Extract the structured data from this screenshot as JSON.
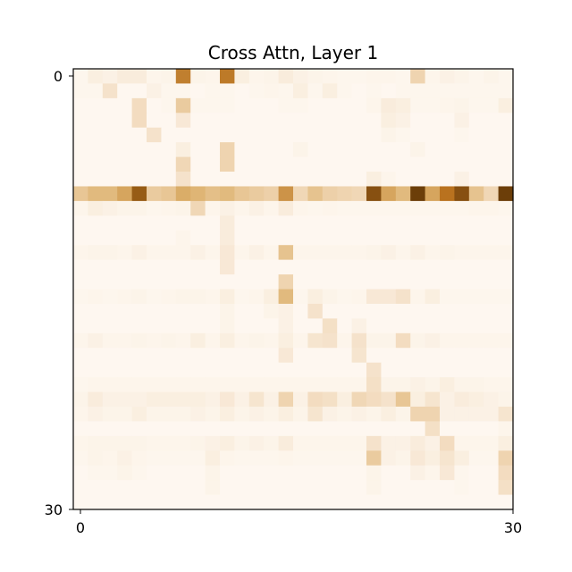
{
  "chart_data": {
    "type": "heatmap",
    "title": "Cross Attn, Layer 1",
    "xlabel": "",
    "ylabel": "",
    "rows": 30,
    "cols": 30,
    "xlim": [
      0,
      30
    ],
    "ylim": [
      0,
      30
    ],
    "x_ticks": [
      "0",
      "30"
    ],
    "y_ticks": [
      "0",
      "30"
    ],
    "colormap": [
      "#fffbf6",
      "#f3dcc0",
      "#ddb26e",
      "#b9721f",
      "#653a07"
    ],
    "grid": false,
    "values": [
      [
        0.04,
        0.1,
        0.08,
        0.12,
        0.12,
        0.05,
        0.06,
        0.7,
        0.06,
        0.05,
        0.72,
        0.1,
        0.05,
        0.06,
        0.12,
        0.08,
        0.06,
        0.05,
        0.04,
        0.04,
        0.05,
        0.05,
        0.04,
        0.3,
        0.05,
        0.08,
        0.06,
        0.04,
        0.06,
        0.04
      ],
      [
        0.04,
        0.04,
        0.2,
        0.03,
        0.03,
        0.08,
        0.04,
        0.04,
        0.03,
        0.04,
        0.04,
        0.03,
        0.04,
        0.05,
        0.04,
        0.1,
        0.04,
        0.1,
        0.04,
        0.03,
        0.04,
        0.03,
        0.04,
        0.04,
        0.04,
        0.04,
        0.04,
        0.04,
        0.04,
        0.04
      ],
      [
        0.03,
        0.03,
        0.03,
        0.03,
        0.25,
        0.03,
        0.04,
        0.35,
        0.04,
        0.04,
        0.04,
        0.03,
        0.03,
        0.03,
        0.04,
        0.04,
        0.03,
        0.03,
        0.03,
        0.03,
        0.05,
        0.12,
        0.1,
        0.04,
        0.04,
        0.05,
        0.06,
        0.04,
        0.04,
        0.1
      ],
      [
        0.03,
        0.03,
        0.03,
        0.03,
        0.25,
        0.03,
        0.03,
        0.15,
        0.03,
        0.03,
        0.03,
        0.03,
        0.03,
        0.03,
        0.03,
        0.03,
        0.03,
        0.03,
        0.03,
        0.03,
        0.03,
        0.1,
        0.08,
        0.03,
        0.03,
        0.03,
        0.08,
        0.03,
        0.03,
        0.03
      ],
      [
        0.03,
        0.03,
        0.03,
        0.03,
        0.03,
        0.2,
        0.03,
        0.03,
        0.03,
        0.03,
        0.03,
        0.03,
        0.03,
        0.03,
        0.03,
        0.03,
        0.03,
        0.03,
        0.03,
        0.03,
        0.03,
        0.06,
        0.04,
        0.03,
        0.03,
        0.03,
        0.04,
        0.03,
        0.03,
        0.03
      ],
      [
        0.03,
        0.03,
        0.03,
        0.03,
        0.03,
        0.03,
        0.03,
        0.1,
        0.03,
        0.03,
        0.3,
        0.03,
        0.03,
        0.03,
        0.03,
        0.06,
        0.03,
        0.03,
        0.03,
        0.03,
        0.03,
        0.03,
        0.03,
        0.06,
        0.03,
        0.03,
        0.03,
        0.03,
        0.03,
        0.03
      ],
      [
        0.03,
        0.03,
        0.03,
        0.03,
        0.03,
        0.03,
        0.03,
        0.28,
        0.03,
        0.03,
        0.3,
        0.03,
        0.03,
        0.03,
        0.03,
        0.03,
        0.03,
        0.03,
        0.03,
        0.03,
        0.03,
        0.03,
        0.03,
        0.03,
        0.03,
        0.03,
        0.03,
        0.03,
        0.03,
        0.03
      ],
      [
        0.03,
        0.03,
        0.03,
        0.03,
        0.03,
        0.03,
        0.03,
        0.2,
        0.03,
        0.03,
        0.03,
        0.03,
        0.03,
        0.03,
        0.03,
        0.03,
        0.03,
        0.03,
        0.03,
        0.03,
        0.1,
        0.05,
        0.03,
        0.03,
        0.03,
        0.03,
        0.08,
        0.03,
        0.03,
        0.03
      ],
      [
        0.38,
        0.45,
        0.45,
        0.55,
        0.85,
        0.35,
        0.38,
        0.52,
        0.48,
        0.42,
        0.45,
        0.38,
        0.35,
        0.32,
        0.62,
        0.28,
        0.4,
        0.32,
        0.3,
        0.28,
        0.9,
        0.55,
        0.45,
        0.98,
        0.55,
        0.75,
        0.9,
        0.4,
        0.28,
        0.98
      ],
      [
        0.05,
        0.1,
        0.08,
        0.06,
        0.06,
        0.04,
        0.05,
        0.06,
        0.28,
        0.05,
        0.08,
        0.05,
        0.08,
        0.05,
        0.12,
        0.05,
        0.04,
        0.05,
        0.04,
        0.04,
        0.04,
        0.04,
        0.04,
        0.04,
        0.04,
        0.04,
        0.04,
        0.05,
        0.05,
        0.04
      ],
      [
        0.03,
        0.03,
        0.03,
        0.03,
        0.03,
        0.03,
        0.03,
        0.03,
        0.03,
        0.03,
        0.12,
        0.03,
        0.03,
        0.03,
        0.03,
        0.03,
        0.03,
        0.03,
        0.03,
        0.03,
        0.03,
        0.03,
        0.03,
        0.03,
        0.03,
        0.03,
        0.03,
        0.03,
        0.03,
        0.03
      ],
      [
        0.03,
        0.03,
        0.03,
        0.03,
        0.03,
        0.03,
        0.03,
        0.05,
        0.03,
        0.03,
        0.12,
        0.03,
        0.03,
        0.03,
        0.03,
        0.03,
        0.03,
        0.03,
        0.03,
        0.03,
        0.03,
        0.03,
        0.03,
        0.03,
        0.03,
        0.03,
        0.03,
        0.03,
        0.03,
        0.03
      ],
      [
        0.05,
        0.06,
        0.06,
        0.05,
        0.08,
        0.05,
        0.05,
        0.05,
        0.08,
        0.05,
        0.15,
        0.05,
        0.08,
        0.05,
        0.4,
        0.05,
        0.05,
        0.05,
        0.05,
        0.05,
        0.06,
        0.08,
        0.05,
        0.08,
        0.05,
        0.06,
        0.05,
        0.05,
        0.05,
        0.05
      ],
      [
        0.03,
        0.03,
        0.03,
        0.03,
        0.03,
        0.03,
        0.03,
        0.03,
        0.03,
        0.03,
        0.15,
        0.03,
        0.03,
        0.03,
        0.03,
        0.03,
        0.03,
        0.03,
        0.03,
        0.03,
        0.03,
        0.03,
        0.03,
        0.03,
        0.03,
        0.03,
        0.03,
        0.03,
        0.03,
        0.03
      ],
      [
        0.03,
        0.03,
        0.03,
        0.03,
        0.03,
        0.03,
        0.03,
        0.03,
        0.03,
        0.03,
        0.03,
        0.03,
        0.03,
        0.03,
        0.3,
        0.03,
        0.03,
        0.03,
        0.03,
        0.03,
        0.03,
        0.03,
        0.03,
        0.03,
        0.03,
        0.03,
        0.03,
        0.03,
        0.03,
        0.03
      ],
      [
        0.04,
        0.05,
        0.04,
        0.05,
        0.06,
        0.04,
        0.05,
        0.06,
        0.06,
        0.05,
        0.1,
        0.04,
        0.05,
        0.1,
        0.45,
        0.04,
        0.1,
        0.06,
        0.04,
        0.05,
        0.15,
        0.15,
        0.2,
        0.05,
        0.1,
        0.04,
        0.04,
        0.04,
        0.04,
        0.04
      ],
      [
        0.03,
        0.03,
        0.03,
        0.03,
        0.03,
        0.03,
        0.03,
        0.03,
        0.03,
        0.03,
        0.06,
        0.03,
        0.03,
        0.06,
        0.08,
        0.03,
        0.2,
        0.03,
        0.03,
        0.03,
        0.03,
        0.03,
        0.03,
        0.03,
        0.03,
        0.03,
        0.03,
        0.03,
        0.03,
        0.03
      ],
      [
        0.03,
        0.03,
        0.03,
        0.03,
        0.03,
        0.03,
        0.03,
        0.03,
        0.03,
        0.03,
        0.06,
        0.03,
        0.03,
        0.03,
        0.08,
        0.03,
        0.03,
        0.22,
        0.03,
        0.08,
        0.03,
        0.03,
        0.03,
        0.03,
        0.03,
        0.03,
        0.03,
        0.03,
        0.03,
        0.03
      ],
      [
        0.05,
        0.08,
        0.05,
        0.05,
        0.06,
        0.05,
        0.06,
        0.05,
        0.1,
        0.05,
        0.1,
        0.05,
        0.06,
        0.05,
        0.1,
        0.05,
        0.18,
        0.2,
        0.05,
        0.2,
        0.06,
        0.06,
        0.25,
        0.06,
        0.08,
        0.05,
        0.05,
        0.05,
        0.05,
        0.05
      ],
      [
        0.03,
        0.03,
        0.03,
        0.03,
        0.03,
        0.03,
        0.03,
        0.03,
        0.03,
        0.03,
        0.03,
        0.03,
        0.03,
        0.03,
        0.15,
        0.03,
        0.03,
        0.03,
        0.03,
        0.18,
        0.03,
        0.03,
        0.03,
        0.03,
        0.03,
        0.03,
        0.03,
        0.03,
        0.03,
        0.03
      ],
      [
        0.03,
        0.03,
        0.03,
        0.03,
        0.03,
        0.03,
        0.03,
        0.03,
        0.03,
        0.03,
        0.03,
        0.03,
        0.03,
        0.03,
        0.03,
        0.03,
        0.03,
        0.03,
        0.03,
        0.03,
        0.2,
        0.03,
        0.03,
        0.03,
        0.03,
        0.03,
        0.03,
        0.03,
        0.03,
        0.03
      ],
      [
        0.04,
        0.05,
        0.05,
        0.05,
        0.05,
        0.05,
        0.05,
        0.05,
        0.05,
        0.05,
        0.05,
        0.05,
        0.05,
        0.05,
        0.05,
        0.05,
        0.05,
        0.05,
        0.05,
        0.05,
        0.22,
        0.06,
        0.06,
        0.08,
        0.06,
        0.1,
        0.06,
        0.06,
        0.05,
        0.05
      ],
      [
        0.06,
        0.12,
        0.08,
        0.08,
        0.08,
        0.1,
        0.1,
        0.1,
        0.1,
        0.08,
        0.15,
        0.08,
        0.18,
        0.08,
        0.3,
        0.08,
        0.25,
        0.22,
        0.1,
        0.28,
        0.25,
        0.2,
        0.38,
        0.1,
        0.18,
        0.08,
        0.12,
        0.1,
        0.08,
        0.06
      ],
      [
        0.05,
        0.08,
        0.06,
        0.06,
        0.1,
        0.06,
        0.06,
        0.06,
        0.08,
        0.06,
        0.1,
        0.06,
        0.08,
        0.06,
        0.1,
        0.06,
        0.18,
        0.08,
        0.06,
        0.08,
        0.06,
        0.1,
        0.06,
        0.3,
        0.3,
        0.08,
        0.08,
        0.08,
        0.08,
        0.18
      ],
      [
        0.03,
        0.03,
        0.03,
        0.03,
        0.03,
        0.03,
        0.03,
        0.03,
        0.03,
        0.03,
        0.03,
        0.03,
        0.03,
        0.03,
        0.03,
        0.03,
        0.03,
        0.03,
        0.03,
        0.03,
        0.03,
        0.03,
        0.03,
        0.03,
        0.22,
        0.03,
        0.03,
        0.03,
        0.03,
        0.05
      ],
      [
        0.05,
        0.06,
        0.06,
        0.06,
        0.06,
        0.05,
        0.05,
        0.05,
        0.06,
        0.08,
        0.1,
        0.06,
        0.08,
        0.06,
        0.12,
        0.05,
        0.05,
        0.05,
        0.05,
        0.05,
        0.2,
        0.08,
        0.08,
        0.12,
        0.08,
        0.25,
        0.05,
        0.05,
        0.05,
        0.1
      ],
      [
        0.04,
        0.06,
        0.05,
        0.08,
        0.05,
        0.04,
        0.04,
        0.04,
        0.04,
        0.1,
        0.05,
        0.04,
        0.04,
        0.04,
        0.05,
        0.04,
        0.04,
        0.04,
        0.04,
        0.04,
        0.35,
        0.08,
        0.06,
        0.15,
        0.1,
        0.18,
        0.1,
        0.04,
        0.04,
        0.3
      ],
      [
        0.03,
        0.04,
        0.04,
        0.06,
        0.04,
        0.03,
        0.03,
        0.03,
        0.03,
        0.06,
        0.03,
        0.03,
        0.03,
        0.03,
        0.03,
        0.03,
        0.03,
        0.03,
        0.03,
        0.03,
        0.06,
        0.03,
        0.03,
        0.08,
        0.05,
        0.15,
        0.04,
        0.03,
        0.03,
        0.25
      ],
      [
        0.03,
        0.03,
        0.03,
        0.03,
        0.03,
        0.03,
        0.03,
        0.03,
        0.03,
        0.06,
        0.03,
        0.03,
        0.03,
        0.03,
        0.03,
        0.03,
        0.03,
        0.03,
        0.03,
        0.03,
        0.06,
        0.03,
        0.03,
        0.03,
        0.03,
        0.03,
        0.04,
        0.03,
        0.03,
        0.22
      ],
      [
        0.03,
        0.03,
        0.03,
        0.03,
        0.03,
        0.03,
        0.03,
        0.03,
        0.03,
        0.03,
        0.03,
        0.03,
        0.03,
        0.03,
        0.03,
        0.03,
        0.03,
        0.03,
        0.03,
        0.03,
        0.03,
        0.03,
        0.03,
        0.03,
        0.03,
        0.03,
        0.03,
        0.03,
        0.03,
        0.03
      ]
    ]
  }
}
